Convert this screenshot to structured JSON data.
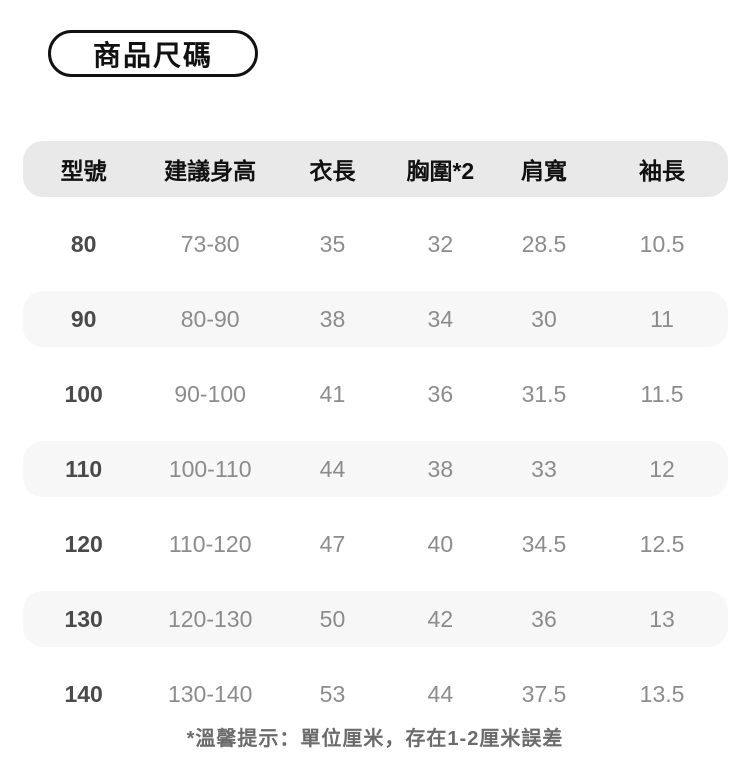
{
  "title_badge": {
    "label": "商品尺碼"
  },
  "chart_data": {
    "type": "table",
    "title": "商品尺碼",
    "columns": [
      "型號",
      "建議身高",
      "衣長",
      "胸圍*2",
      "肩寬",
      "袖長"
    ],
    "rows": [
      [
        "80",
        "73-80",
        "35",
        "32",
        "28.5",
        "10.5"
      ],
      [
        "90",
        "80-90",
        "38",
        "34",
        "30",
        "11"
      ],
      [
        "100",
        "90-100",
        "41",
        "36",
        "31.5",
        "11.5"
      ],
      [
        "110",
        "100-110",
        "44",
        "38",
        "33",
        "12"
      ],
      [
        "120",
        "110-120",
        "47",
        "40",
        "34.5",
        "12.5"
      ],
      [
        "130",
        "120-130",
        "50",
        "42",
        "36",
        "13"
      ],
      [
        "140",
        "130-140",
        "53",
        "44",
        "37.5",
        "13.5"
      ]
    ],
    "footnote": "*溫馨提示：單位厘米，存在1-2厘米誤差",
    "striped_row_models": [
      "90",
      "110",
      "130"
    ]
  },
  "footer": {
    "note": "*溫馨提示：單位厘米，存在1-2厘米誤差"
  },
  "colors": {
    "page_bg": "#ffffff",
    "badge_border": "#111111",
    "header_row_bg": "#e9e9e9",
    "stripe_row_bg": "#f7f7f7",
    "header_text": "#111111",
    "model_column_text": "#4a4a4a",
    "value_text": "#8c8c8c",
    "note_text": "#6b6b6b"
  }
}
